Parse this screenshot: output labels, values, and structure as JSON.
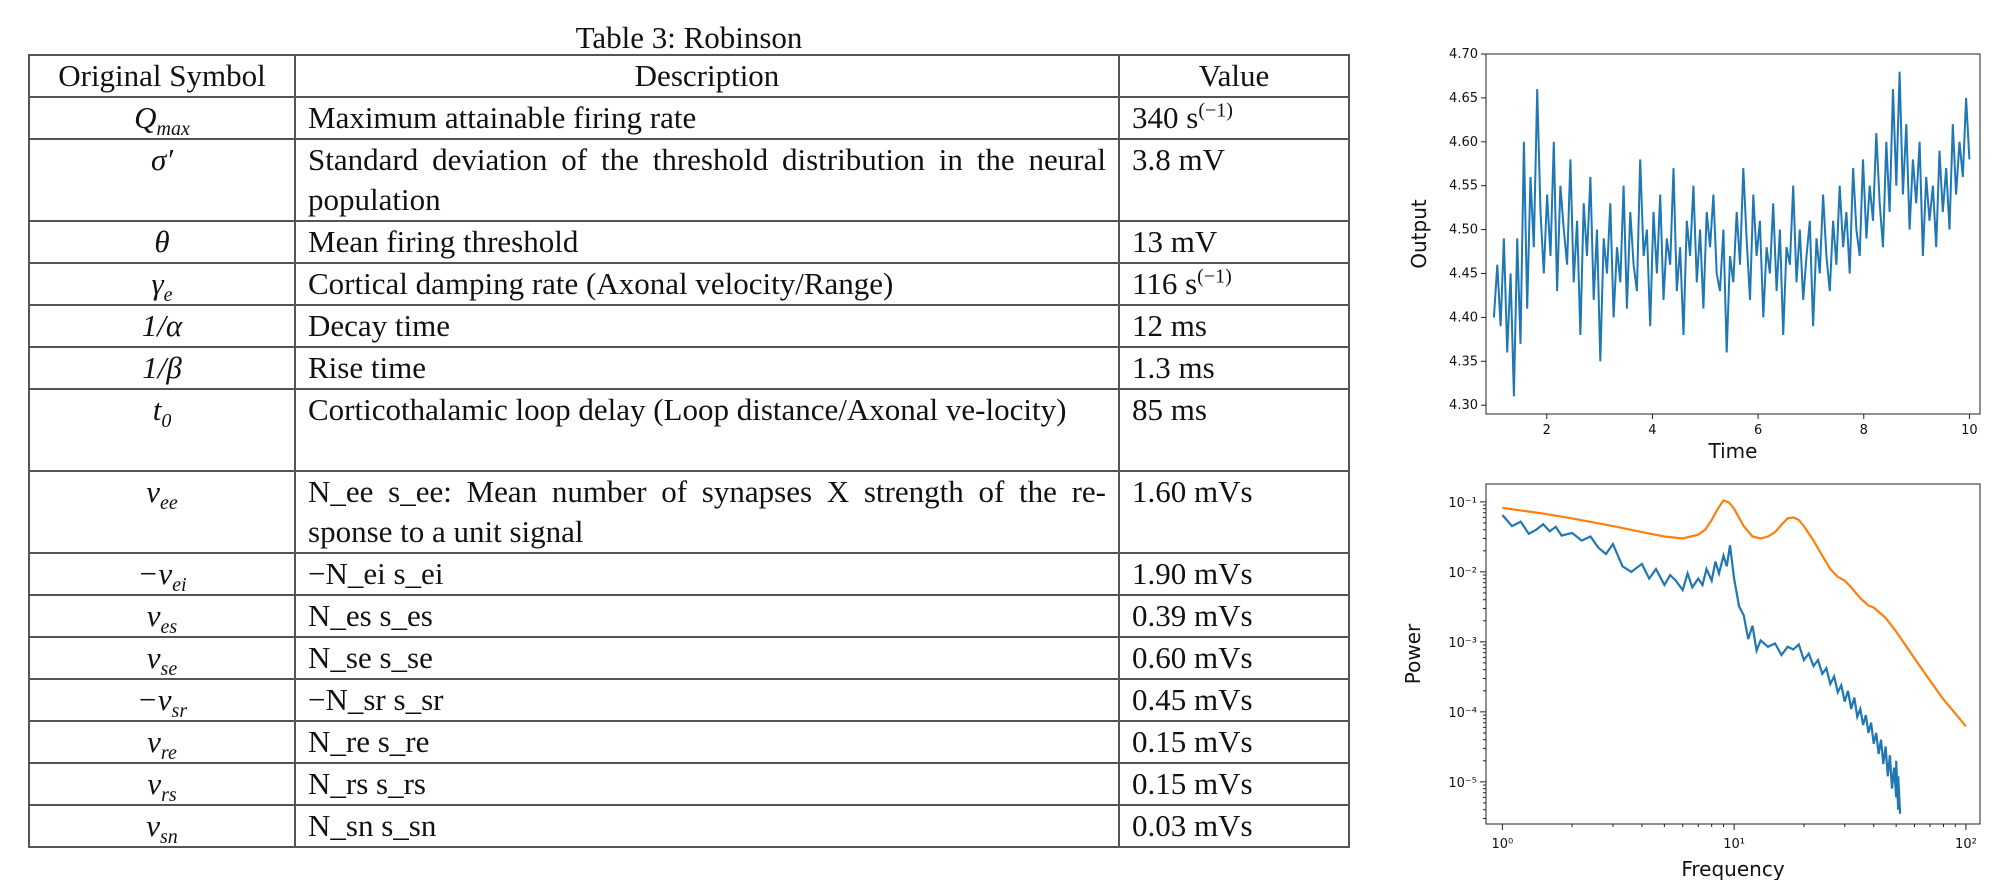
{
  "table": {
    "caption": "Table 3: Robinson",
    "headers": [
      "Original Symbol",
      "Description",
      "Value"
    ],
    "rows": [
      {
        "sym": "Q",
        "sub": "max",
        "desc": "Maximum attainable firing rate",
        "val": "340 s",
        "valsup": "(−1)",
        "tall": false
      },
      {
        "sym": "σ′",
        "sub": "",
        "desc": "Standard deviation of the threshold distribution in the neural population",
        "val": "3.8 mV",
        "valsup": "",
        "tall": true
      },
      {
        "sym": "θ",
        "sub": "",
        "desc": "Mean firing threshold",
        "val": "13 mV",
        "valsup": "",
        "tall": false
      },
      {
        "sym": "γ",
        "sub": "e",
        "desc": "Cortical damping rate (Axonal velocity/Range)",
        "val": "116 s",
        "valsup": "(−1)",
        "tall": false
      },
      {
        "sym": "1/α",
        "sub": "",
        "desc": "Decay time",
        "val": "12 ms",
        "valsup": "",
        "tall": false
      },
      {
        "sym": "1/β",
        "sub": "",
        "desc": "Rise time",
        "val": "1.3 ms",
        "valsup": "",
        "tall": false
      },
      {
        "sym": "t",
        "sub": "0",
        "desc": "Corticothalamic loop delay (Loop distance/Axonal ve-locity)",
        "val": "85 ms",
        "valsup": "",
        "tall": true
      },
      {
        "sym": "v",
        "sub": "ee",
        "desc": "N_ee s_ee: Mean number of synapses X strength of the re-sponse to a unit signal",
        "val": "1.60 mVs",
        "valsup": "",
        "tall": true
      },
      {
        "sym": "−v",
        "sub": "ei",
        "desc": "−N_ei s_ei",
        "val": "1.90 mVs",
        "valsup": "",
        "tall": false
      },
      {
        "sym": "v",
        "sub": "es",
        "desc": "N_es s_es",
        "val": "0.39 mVs",
        "valsup": "",
        "tall": false
      },
      {
        "sym": "v",
        "sub": "se",
        "desc": "N_se s_se",
        "val": "0.60 mVs",
        "valsup": "",
        "tall": false
      },
      {
        "sym": "−v",
        "sub": "sr",
        "desc": "−N_sr s_sr",
        "val": "0.45 mVs",
        "valsup": "",
        "tall": false
      },
      {
        "sym": "v",
        "sub": "re",
        "desc": "N_re s_re",
        "val": "0.15 mVs",
        "valsup": "",
        "tall": false
      },
      {
        "sym": "v",
        "sub": "rs",
        "desc": "N_rs s_rs",
        "val": "0.15 mVs",
        "valsup": "",
        "tall": false
      },
      {
        "sym": "v",
        "sub": "sn",
        "desc": "N_sn s_sn",
        "val": "0.03 mVs",
        "valsup": "",
        "tall": false
      }
    ]
  },
  "chart_data": [
    {
      "type": "line",
      "xlabel": "Time",
      "ylabel": "Output",
      "xlim": [
        0.85,
        10.2
      ],
      "ylim": [
        4.29,
        4.7
      ],
      "xticks": [
        "2",
        "4",
        "6",
        "8",
        "10"
      ],
      "yticks": [
        "4.30",
        "4.35",
        "4.40",
        "4.45",
        "4.50",
        "4.55",
        "4.60",
        "4.65",
        "4.70"
      ],
      "color": "#1f77b4",
      "series": [
        {
          "x_start": 1.0,
          "x_end": 10.0,
          "values": [
            4.4,
            4.46,
            4.39,
            4.49,
            4.36,
            4.45,
            4.31,
            4.49,
            4.37,
            4.6,
            4.41,
            4.56,
            4.48,
            4.66,
            4.52,
            4.45,
            4.54,
            4.47,
            4.6,
            4.43,
            4.55,
            4.5,
            4.46,
            4.58,
            4.44,
            4.51,
            4.38,
            4.53,
            4.47,
            4.56,
            4.42,
            4.5,
            4.35,
            4.49,
            4.45,
            4.53,
            4.4,
            4.48,
            4.44,
            4.55,
            4.41,
            4.52,
            4.46,
            4.43,
            4.58,
            4.47,
            4.5,
            4.39,
            4.52,
            4.45,
            4.54,
            4.42,
            4.49,
            4.46,
            4.57,
            4.43,
            4.48,
            4.38,
            4.51,
            4.47,
            4.55,
            4.44,
            4.5,
            4.41,
            4.52,
            4.48,
            4.54,
            4.45,
            4.43,
            4.5,
            4.36,
            4.47,
            4.44,
            4.52,
            4.46,
            4.57,
            4.49,
            4.42,
            4.54,
            4.47,
            4.51,
            4.4,
            4.48,
            4.45,
            4.53,
            4.43,
            4.5,
            4.38,
            4.48,
            4.46,
            4.55,
            4.44,
            4.5,
            4.42,
            4.47,
            4.51,
            4.39,
            4.49,
            4.45,
            4.54,
            4.47,
            4.43,
            4.51,
            4.46,
            4.55,
            4.48,
            4.52,
            4.45,
            4.57,
            4.5,
            4.47,
            4.58,
            4.49,
            4.55,
            4.51,
            4.61,
            4.53,
            4.48,
            4.6,
            4.52,
            4.66,
            4.55,
            4.68,
            4.54,
            4.62,
            4.5,
            4.58,
            4.53,
            4.6,
            4.47,
            4.56,
            4.51,
            4.55,
            4.48,
            4.59,
            4.52,
            4.57,
            4.5,
            4.62,
            4.54,
            4.6,
            4.56,
            4.65,
            4.58
          ]
        }
      ]
    },
    {
      "type": "line",
      "xlabel": "Frequency",
      "ylabel": "Power",
      "xscale": "log",
      "yscale": "log",
      "xlim": [
        0.85,
        115
      ],
      "ylim": [
        2.5e-06,
        0.18
      ],
      "xticks": [
        "10⁰",
        "10¹",
        "10²"
      ],
      "yticks": [
        "10⁻⁵",
        "10⁻⁴",
        "10⁻³",
        "10⁻²",
        "10⁻¹"
      ],
      "series": [
        {
          "color": "#ff7f0e",
          "x": [
            1,
            1.5,
            2,
            3,
            4,
            5,
            6,
            7,
            7.5,
            8,
            8.5,
            9,
            9.5,
            10,
            11,
            12,
            13,
            14,
            15,
            16,
            17,
            18,
            19,
            20,
            22,
            24,
            26,
            28,
            30,
            32,
            35,
            38,
            40,
            45,
            50,
            60,
            70,
            80,
            90,
            100
          ],
          "y": [
            0.082,
            0.068,
            0.058,
            0.045,
            0.037,
            0.032,
            0.03,
            0.034,
            0.04,
            0.055,
            0.08,
            0.105,
            0.098,
            0.08,
            0.045,
            0.032,
            0.03,
            0.032,
            0.037,
            0.047,
            0.058,
            0.06,
            0.055,
            0.045,
            0.028,
            0.017,
            0.011,
            0.0085,
            0.0075,
            0.006,
            0.0042,
            0.0033,
            0.0031,
            0.0022,
            0.0014,
            0.00058,
            0.00028,
            0.00015,
            9.5e-05,
            6.2e-05
          ]
        },
        {
          "color": "#1f77b4",
          "x": [
            1,
            1.1,
            1.2,
            1.3,
            1.4,
            1.5,
            1.6,
            1.7,
            1.8,
            2,
            2.2,
            2.4,
            2.6,
            2.8,
            3,
            3.3,
            3.6,
            4,
            4.3,
            4.6,
            5,
            5.3,
            5.6,
            6,
            6.3,
            6.6,
            7,
            7.3,
            7.6,
            8,
            8.3,
            8.6,
            9,
            9.3,
            9.6,
            10,
            10.5,
            11,
            11.5,
            12,
            12.5,
            13,
            14,
            15,
            16,
            17,
            18,
            19,
            20,
            21,
            22,
            23,
            24,
            25,
            26,
            27,
            28,
            29,
            30,
            31,
            32,
            33,
            34,
            35,
            36,
            37,
            38,
            39,
            40,
            41,
            42,
            43,
            44,
            45,
            46,
            47,
            48,
            49,
            50,
            50,
            51,
            51,
            52
          ],
          "y": [
            0.065,
            0.045,
            0.052,
            0.035,
            0.04,
            0.048,
            0.038,
            0.044,
            0.033,
            0.036,
            0.028,
            0.032,
            0.022,
            0.018,
            0.025,
            0.012,
            0.01,
            0.013,
            0.008,
            0.011,
            0.0065,
            0.009,
            0.0075,
            0.0055,
            0.0095,
            0.006,
            0.008,
            0.0065,
            0.011,
            0.0075,
            0.014,
            0.0095,
            0.017,
            0.012,
            0.024,
            0.008,
            0.0032,
            0.0024,
            0.0011,
            0.0017,
            0.00075,
            0.00105,
            0.00085,
            0.00095,
            0.00065,
            0.00085,
            0.00078,
            0.00092,
            0.00055,
            0.00068,
            0.00045,
            0.00055,
            0.00035,
            0.00042,
            0.00025,
            0.00032,
            0.00019,
            0.00024,
            0.00014,
            0.0002,
            0.00011,
            0.00016,
            8.5e-05,
            0.00011,
            6.5e-05,
            9e-05,
            5e-05,
            7e-05,
            3.5e-05,
            5e-05,
            2.5e-05,
            4e-05,
            1.8e-05,
            3.2e-05,
            1.2e-05,
            2.4e-05,
            8e-06,
            1.6e-05,
            6e-06,
            2e-05,
            4e-06,
            1.2e-05,
            3.5e-06
          ]
        }
      ]
    }
  ]
}
